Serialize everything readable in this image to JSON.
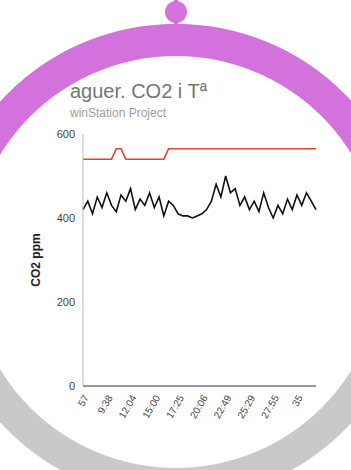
{
  "chart_data": {
    "type": "line",
    "title": "aguer. CO2 i Tª",
    "subtitle": "winStation Project",
    "ylabel": "CO2 ppm",
    "categories": [
      "57",
      null,
      null,
      null,
      null,
      "9:38",
      null,
      null,
      null,
      null,
      "12:04",
      null,
      null,
      null,
      null,
      "15:00",
      null,
      null,
      null,
      null,
      "17:25",
      null,
      null,
      null,
      null,
      "20:06",
      null,
      null,
      null,
      null,
      "22:49",
      null,
      null,
      null,
      null,
      "25:29",
      null,
      null,
      null,
      null,
      "27:55",
      null,
      null,
      null,
      null,
      "35",
      null,
      null,
      null,
      null
    ],
    "series": [
      {
        "color": "#e8432d",
        "values": [
          540,
          540,
          540,
          540,
          540,
          540,
          540,
          565,
          565,
          540,
          540,
          540,
          540,
          540,
          540,
          540,
          540,
          540,
          565,
          565,
          565,
          565,
          565,
          565,
          565,
          565,
          565,
          565,
          565,
          565,
          565,
          565,
          565,
          565,
          565,
          565,
          565,
          565,
          565,
          565,
          565,
          565,
          565,
          565,
          565,
          565,
          565,
          565,
          565,
          565
        ]
      },
      {
        "color": "#111111",
        "values": [
          420,
          440,
          410,
          450,
          425,
          460,
          430,
          415,
          455,
          440,
          470,
          420,
          445,
          430,
          460,
          425,
          450,
          405,
          440,
          430,
          410,
          405,
          405,
          400,
          405,
          410,
          420,
          440,
          480,
          450,
          500,
          460,
          470,
          430,
          450,
          420,
          440,
          415,
          460,
          425,
          400,
          430,
          410,
          445,
          420,
          455,
          430,
          460,
          440,
          420
        ]
      }
    ],
    "ylim": [
      0,
      600
    ],
    "yticks": [
      0,
      200,
      400,
      600
    ],
    "grid": false
  }
}
